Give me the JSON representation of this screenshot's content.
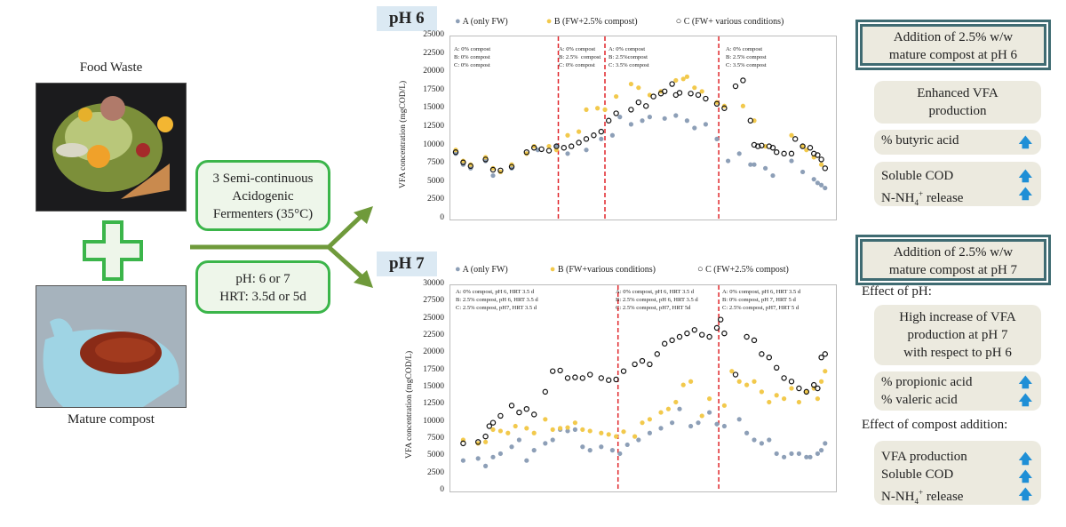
{
  "inputs": {
    "food_waste_label": "Food Waste",
    "compost_label": "Mature compost"
  },
  "process": {
    "fermenters_line1": "3 Semi-continuous",
    "fermenters_line2": "Acidogenic",
    "fermenters_line3": "Fermenters (35°C)",
    "conditions_line1": "pH: 6 or 7",
    "conditions_line2": "HRT: 3.5d or 5d"
  },
  "colors": {
    "A": "#8d9fb7",
    "B": "#f2c94c",
    "C": "#111111",
    "divider": "#e0262b",
    "green": "#3bb54a",
    "arrow": "#6f9a3b",
    "up_arrow": "#1f8fd6"
  },
  "icons": {
    "plus": "plus-icon",
    "arrow": "fork-arrow-icon",
    "increase": "up-arrow-icon"
  },
  "chart_data": [
    {
      "type": "scatter",
      "panel_label": "pH 6",
      "ylabel": "VFA concentration (mgCOD/L)",
      "ylim": [
        0,
        25000
      ],
      "yticks": [
        "0",
        "2500",
        "5000",
        "7500",
        "10000",
        "12500",
        "15000",
        "17500",
        "20000",
        "22500",
        "25000"
      ],
      "legend": [
        "A (only FW)",
        "B (FW+2.5% compost)",
        "C (FW+ various conditions)"
      ],
      "dividers_x": [
        0.275,
        0.4,
        0.705
      ],
      "annotations": [
        "A: 0% compost\nB: 0% compost\nC: 0% compost",
        "A: 0% compost\nB: 2.5%  compost\nC: 0% compost",
        "A: 0% compost\nB: 2.5%compost\nC: 3.5% compost",
        "A: 0% compost\nB: 2.5% compost\nC: 3.5% compost"
      ],
      "series": [
        {
          "name": "A (only FW)",
          "x": [
            0.0,
            0.02,
            0.04,
            0.08,
            0.1,
            0.12,
            0.15,
            0.19,
            0.22,
            0.27,
            0.3,
            0.35,
            0.39,
            0.42,
            0.44,
            0.47,
            0.5,
            0.52,
            0.56,
            0.59,
            0.62,
            0.64,
            0.67,
            0.7,
            0.73,
            0.76,
            0.79,
            0.8,
            0.83,
            0.85,
            0.9,
            0.93,
            0.96,
            0.97,
            0.98,
            0.99
          ],
          "y": [
            9000,
            7500,
            7000,
            8000,
            6000,
            6500,
            7000,
            9000,
            9500,
            10000,
            9000,
            9500,
            11000,
            11500,
            14000,
            13000,
            13500,
            14000,
            13800,
            14200,
            13500,
            12500,
            13000,
            11000,
            8000,
            9000,
            7500,
            7500,
            7000,
            6000,
            8000,
            6500,
            5500,
            5000,
            4700,
            4300
          ]
        },
        {
          "name": "B (FW+2.5% compost)",
          "x": [
            0.0,
            0.02,
            0.04,
            0.08,
            0.1,
            0.12,
            0.15,
            0.19,
            0.21,
            0.25,
            0.27,
            0.3,
            0.33,
            0.35,
            0.38,
            0.4,
            0.43,
            0.47,
            0.49,
            0.52,
            0.55,
            0.59,
            0.61,
            0.62,
            0.64,
            0.66,
            0.7,
            0.72,
            0.77,
            0.8,
            0.83,
            0.9,
            0.93,
            0.94,
            0.96,
            0.98
          ],
          "y": [
            9500,
            8000,
            7500,
            8500,
            7000,
            6500,
            7500,
            9000,
            10000,
            10000,
            9500,
            11500,
            12000,
            15000,
            15200,
            15000,
            16800,
            18500,
            18000,
            17000,
            17500,
            19000,
            19200,
            19500,
            18000,
            17500,
            16000,
            15500,
            15500,
            13500,
            10000,
            11500,
            10000,
            9500,
            8500,
            7500
          ]
        },
        {
          "name": "C (FW+ various conditions)",
          "x": [
            0.0,
            0.02,
            0.04,
            0.08,
            0.1,
            0.12,
            0.15,
            0.19,
            0.21,
            0.23,
            0.25,
            0.27,
            0.29,
            0.31,
            0.33,
            0.35,
            0.37,
            0.39,
            0.41,
            0.43,
            0.47,
            0.49,
            0.51,
            0.53,
            0.55,
            0.56,
            0.58,
            0.59,
            0.6,
            0.63,
            0.65,
            0.67,
            0.7,
            0.72,
            0.75,
            0.77,
            0.79,
            0.8,
            0.81,
            0.82,
            0.84,
            0.85,
            0.86,
            0.88,
            0.9,
            0.91,
            0.93,
            0.95,
            0.96,
            0.97,
            0.98,
            0.99
          ],
          "y": [
            9200,
            7800,
            7300,
            8200,
            6800,
            6700,
            7200,
            9200,
            9800,
            9600,
            9400,
            10000,
            9800,
            10000,
            10500,
            11000,
            11500,
            12000,
            13500,
            14500,
            15000,
            16000,
            15500,
            16800,
            17200,
            17500,
            18500,
            17000,
            17300,
            17200,
            17000,
            16500,
            15800,
            15200,
            18200,
            19000,
            13500,
            10200,
            10000,
            10100,
            10000,
            9800,
            9200,
            9000,
            9000,
            11000,
            10000,
            9800,
            9000,
            8800,
            8200,
            7000
          ]
        }
      ]
    },
    {
      "type": "scatter",
      "panel_label": "pH 7",
      "ylabel": "VFA concentration (mgCOD/L)",
      "ylim": [
        0,
        30000
      ],
      "yticks": [
        "0",
        "2500",
        "5000",
        "7500",
        "10000",
        "12500",
        "15000",
        "17500",
        "20000",
        "22500",
        "25000",
        "27500",
        "30000"
      ],
      "legend": [
        "A (only FW)",
        "B (FW+various conditions)",
        "C (FW+2.5% compost)"
      ],
      "dividers_x": [
        0.435,
        0.705
      ],
      "annotations": [
        "A: 0% compost, pH 6, HRT 3.5 d\nB: 2.5% compost, pH 6, HRT 3.5 d\nC: 2.5% compost, pH7, HRT 3.5 d",
        "A: 0% compost, pH 6, HRT 3.5 d\nB: 2.5% compost, pH 6, HRT 3.5 d\nC: 2.5% compost, pH7, HRT 5d",
        "A: 0% compost, pH 6, HRT 3.5 d\nB: 0% compost, pH 7, HRT 5 d\nC: 2.5% compost, pH7, HRT 5 d"
      ],
      "series": [
        {
          "name": "A (only FW)",
          "x": [
            0.02,
            0.06,
            0.08,
            0.1,
            0.12,
            0.15,
            0.17,
            0.19,
            0.21,
            0.24,
            0.26,
            0.28,
            0.3,
            0.32,
            0.34,
            0.36,
            0.39,
            0.42,
            0.44,
            0.46,
            0.49,
            0.52,
            0.55,
            0.58,
            0.6,
            0.63,
            0.65,
            0.68,
            0.7,
            0.72,
            0.76,
            0.78,
            0.8,
            0.82,
            0.84,
            0.86,
            0.88,
            0.9,
            0.92,
            0.94,
            0.95,
            0.97,
            0.98,
            0.99
          ],
          "y": [
            4500,
            4800,
            3700,
            5000,
            5500,
            6500,
            7500,
            4500,
            6000,
            7000,
            7500,
            9000,
            8800,
            9000,
            6500,
            6000,
            6500,
            6000,
            5500,
            6800,
            7500,
            8500,
            9200,
            10000,
            12000,
            9500,
            10000,
            11500,
            9800,
            9500,
            10500,
            8500,
            7500,
            7000,
            7500,
            5500,
            5000,
            5500,
            5500,
            5000,
            5000,
            5500,
            6000,
            7000
          ]
        },
        {
          "name": "B (FW+various conditions)",
          "x": [
            0.02,
            0.06,
            0.08,
            0.1,
            0.12,
            0.14,
            0.16,
            0.19,
            0.21,
            0.24,
            0.26,
            0.28,
            0.3,
            0.32,
            0.34,
            0.36,
            0.39,
            0.41,
            0.43,
            0.45,
            0.48,
            0.5,
            0.52,
            0.55,
            0.57,
            0.59,
            0.61,
            0.63,
            0.66,
            0.68,
            0.72,
            0.74,
            0.76,
            0.78,
            0.8,
            0.82,
            0.84,
            0.86,
            0.88,
            0.9,
            0.92,
            0.94,
            0.96,
            0.97,
            0.98,
            0.99
          ],
          "y": [
            7500,
            7000,
            7200,
            9000,
            8800,
            8500,
            9500,
            9200,
            8500,
            10500,
            9000,
            9200,
            9300,
            10000,
            9000,
            8800,
            8500,
            8300,
            8000,
            8700,
            8000,
            10000,
            10500,
            11500,
            12000,
            13000,
            15500,
            16000,
            11000,
            13500,
            12500,
            17500,
            16000,
            15500,
            16000,
            14500,
            13000,
            14000,
            13500,
            15000,
            13000,
            14500,
            15000,
            13500,
            16000,
            17500
          ]
        },
        {
          "name": "C (FW+2.5% compost)",
          "x": [
            0.02,
            0.06,
            0.08,
            0.09,
            0.1,
            0.12,
            0.15,
            0.17,
            0.19,
            0.21,
            0.24,
            0.26,
            0.28,
            0.3,
            0.32,
            0.34,
            0.36,
            0.39,
            0.41,
            0.43,
            0.45,
            0.48,
            0.5,
            0.52,
            0.54,
            0.56,
            0.58,
            0.6,
            0.62,
            0.64,
            0.66,
            0.68,
            0.7,
            0.71,
            0.72,
            0.75,
            0.78,
            0.8,
            0.82,
            0.84,
            0.86,
            0.88,
            0.9,
            0.92,
            0.94,
            0.96,
            0.97,
            0.98,
            0.99
          ],
          "y": [
            7000,
            7200,
            8000,
            9500,
            10000,
            11000,
            12500,
            11500,
            12000,
            11200,
            14500,
            17500,
            17600,
            16500,
            16600,
            16500,
            17000,
            16500,
            16200,
            16300,
            17500,
            18500,
            19000,
            18500,
            20000,
            21500,
            22000,
            22500,
            23000,
            23500,
            22800,
            22500,
            23800,
            25000,
            23000,
            17000,
            22500,
            22000,
            20000,
            19500,
            18000,
            16500,
            16000,
            15000,
            14500,
            15500,
            15000,
            19500,
            20000
          ]
        }
      ]
    }
  ],
  "right_ph6": {
    "header_line1": "Addition of 2.5% w/w",
    "header_line2": "mature compost at pH 6",
    "enhanced_line1": "Enhanced VFA",
    "enhanced_line2": "production",
    "butyric": "% butyric acid",
    "soluble_cod": "Soluble COD",
    "nnh4_prefix": "N-NH",
    "nnh4_sub": "4",
    "nnh4_sup": "+",
    "nnh4_suffix": " release"
  },
  "right_ph7": {
    "header_line1": "Addition of 2.5% w/w",
    "header_line2": "mature compost at pH 7",
    "effect_ph": "Effect of pH:",
    "high_line1": "High increase of VFA",
    "high_line2": "production at pH 7",
    "high_line3": "with respect to pH 6",
    "propionic": "% propionic acid",
    "valeric": "% valeric acid",
    "effect_compost": "Effect of compost addition:",
    "vfa_prod": "VFA production",
    "soluble_cod": "Soluble COD",
    "nnh4_prefix": "N-NH",
    "nnh4_sub": "4",
    "nnh4_sup": "+",
    "nnh4_suffix": " release"
  }
}
